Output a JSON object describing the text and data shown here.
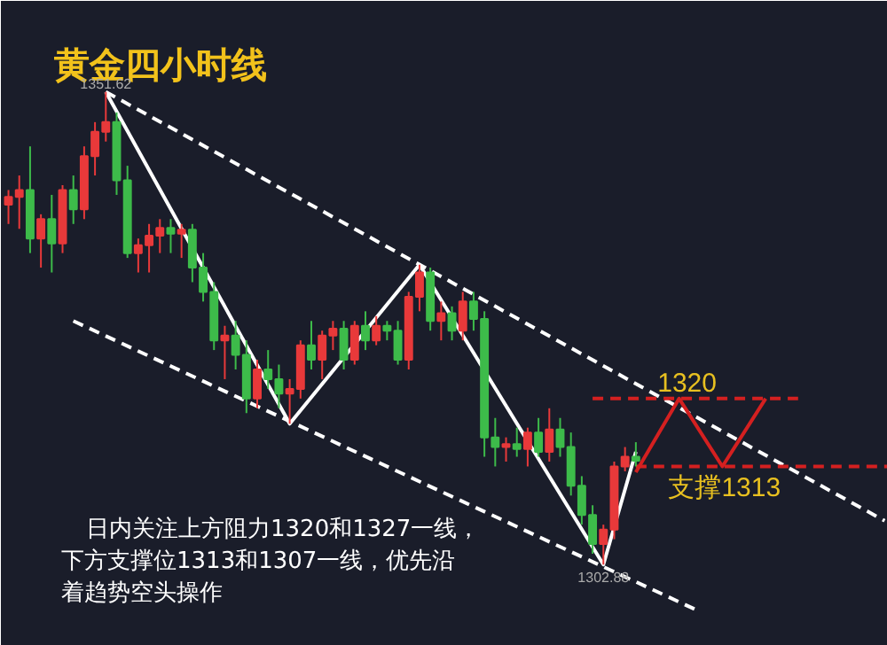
{
  "chart_data": {
    "type": "candlestick",
    "title": "黄金四小时线",
    "categories": [
      null,
      null,
      null,
      null,
      null,
      null,
      null,
      null,
      null,
      null,
      null,
      null,
      null,
      null,
      null,
      null,
      null,
      null,
      null,
      null,
      null,
      null,
      null,
      null,
      null,
      null,
      null,
      null,
      null,
      null,
      null,
      null,
      null,
      null,
      null,
      null,
      null,
      null,
      null,
      null,
      null,
      null,
      null,
      null,
      null,
      null,
      null,
      null,
      null,
      null,
      null,
      null,
      null,
      null,
      null,
      null,
      null,
      null,
      null,
      null,
      null,
      null,
      null,
      null,
      null,
      null,
      null,
      null,
      null,
      null,
      null,
      null,
      null,
      null,
      null,
      null,
      null,
      null,
      null,
      null,
      null,
      null
    ],
    "ohlc": [
      [
        1340.0,
        1341.5,
        1338.0,
        1340.8
      ],
      [
        1340.8,
        1343.0,
        1337.5,
        1341.5
      ],
      [
        1341.5,
        1346.0,
        1335.0,
        1336.5
      ],
      [
        1336.5,
        1339.0,
        1333.5,
        1338.5
      ],
      [
        1338.5,
        1341.0,
        1333.0,
        1336.0
      ],
      [
        1336.0,
        1342.0,
        1335.0,
        1341.5
      ],
      [
        1341.5,
        1343.0,
        1338.0,
        1339.5
      ],
      [
        1339.5,
        1346.0,
        1338.5,
        1345.0
      ],
      [
        1345.0,
        1348.5,
        1343.0,
        1347.5
      ],
      [
        1347.5,
        1351.62,
        1346.5,
        1348.5
      ],
      [
        1348.5,
        1349.5,
        1341.0,
        1342.5
      ],
      [
        1342.5,
        1344.0,
        1334.5,
        1335.0
      ],
      [
        1335.0,
        1336.5,
        1333.0,
        1335.8
      ],
      [
        1335.8,
        1338.0,
        1333.0,
        1336.8
      ],
      [
        1336.8,
        1338.5,
        1335.0,
        1337.6
      ],
      [
        1337.6,
        1338.5,
        1335.0,
        1337.0
      ],
      [
        1337.0,
        1338.0,
        1334.5,
        1337.4
      ],
      [
        1337.4,
        1338.0,
        1332.0,
        1333.5
      ],
      [
        1333.5,
        1335.0,
        1330.0,
        1331.0
      ],
      [
        1331.0,
        1332.0,
        1325.0,
        1326.0
      ],
      [
        1326.0,
        1327.5,
        1322.0,
        1326.5
      ],
      [
        1326.5,
        1328.0,
        1323.0,
        1324.5
      ],
      [
        1324.5,
        1326.0,
        1318.5,
        1320.0
      ],
      [
        1320.0,
        1324.0,
        1319.0,
        1323.0
      ],
      [
        1323.0,
        1325.0,
        1321.0,
        1322.0
      ],
      [
        1322.0,
        1323.5,
        1319.0,
        1320.5
      ],
      [
        1320.5,
        1322.0,
        1317.4,
        1321.0
      ],
      [
        1321.0,
        1326.0,
        1320.0,
        1325.5
      ],
      [
        1325.5,
        1328.0,
        1323.0,
        1324.0
      ],
      [
        1324.0,
        1327.0,
        1322.0,
        1326.5
      ],
      [
        1326.5,
        1328.0,
        1325.0,
        1327.2
      ],
      [
        1327.2,
        1328.0,
        1323.0,
        1324.0
      ],
      [
        1324.0,
        1328.0,
        1323.5,
        1327.5
      ],
      [
        1327.5,
        1329.0,
        1325.0,
        1326.0
      ],
      [
        1326.0,
        1328.5,
        1325.5,
        1327.5
      ],
      [
        1327.5,
        1328.0,
        1326.0,
        1327.0
      ],
      [
        1327.0,
        1328.0,
        1323.5,
        1324.0
      ],
      [
        1324.0,
        1331.0,
        1323.0,
        1330.5
      ],
      [
        1330.5,
        1333.8,
        1329.0,
        1333.0
      ],
      [
        1333.0,
        1333.5,
        1327.0,
        1328.0
      ],
      [
        1328.0,
        1330.0,
        1326.0,
        1328.8
      ],
      [
        1328.8,
        1329.5,
        1326.0,
        1327.0
      ],
      [
        1327.0,
        1331.0,
        1326.0,
        1330.0
      ],
      [
        1330.0,
        1331.0,
        1327.0,
        1328.2
      ],
      [
        1328.2,
        1329.0,
        1314.0,
        1316.0
      ],
      [
        1316.0,
        1318.0,
        1313.0,
        1315.0
      ],
      [
        1315.0,
        1316.0,
        1313.5,
        1315.3
      ],
      [
        1315.3,
        1317.0,
        1314.0,
        1314.8
      ],
      [
        1314.8,
        1317.0,
        1313.0,
        1316.5
      ],
      [
        1316.5,
        1318.0,
        1314.0,
        1314.5
      ],
      [
        1314.5,
        1319.0,
        1313.5,
        1316.8
      ],
      [
        1316.8,
        1318.0,
        1314.0,
        1315.0
      ],
      [
        1315.0,
        1316.5,
        1310.0,
        1311.0
      ],
      [
        1311.0,
        1312.0,
        1307.0,
        1308.0
      ],
      [
        1308.0,
        1309.0,
        1304.0,
        1305.0
      ],
      [
        1305.0,
        1307.0,
        1302.88,
        1306.5
      ],
      [
        1306.5,
        1313.5,
        1305.5,
        1313.0
      ],
      [
        1313.0,
        1315.0,
        1312.5,
        1314.0
      ],
      [
        1314.0,
        1315.5,
        1313.0,
        1313.6
      ],
      null,
      null,
      null,
      null,
      null,
      null,
      null,
      null,
      null,
      null,
      null,
      null,
      null,
      null,
      null,
      null,
      null,
      null,
      null,
      null,
      null,
      null,
      null
    ],
    "colors": [
      "#e8393a",
      "#e8393a",
      "#3dbb4a",
      "#e8393a",
      "#3dbb4a",
      "#e8393a",
      "#3dbb4a",
      "#e8393a",
      "#e8393a",
      "#e8393a",
      "#3dbb4a",
      "#3dbb4a",
      "#e8393a",
      "#e8393a",
      "#e8393a",
      "#3dbb4a",
      "#e8393a",
      "#3dbb4a",
      "#3dbb4a",
      "#3dbb4a",
      "#e8393a",
      "#3dbb4a",
      "#3dbb4a",
      "#e8393a",
      "#3dbb4a",
      "#3dbb4a",
      "#e8393a",
      "#e8393a",
      "#3dbb4a",
      "#e8393a",
      "#e8393a",
      "#3dbb4a",
      "#e8393a",
      "#3dbb4a",
      "#e8393a",
      "#3dbb4a",
      "#3dbb4a",
      "#e8393a",
      "#e8393a",
      "#3dbb4a",
      "#e8393a",
      "#3dbb4a",
      "#e8393a",
      "#3dbb4a",
      "#3dbb4a",
      "#3dbb4a",
      "#e8393a",
      "#3dbb4a",
      "#e8393a",
      "#3dbb4a",
      "#e8393a",
      "#3dbb4a",
      "#3dbb4a",
      "#3dbb4a",
      "#3dbb4a",
      "#e8393a",
      "#e8393a",
      "#e8393a",
      "#3dbb4a",
      null,
      null,
      null,
      null,
      null,
      null,
      null,
      null,
      null,
      null,
      null,
      null,
      null,
      null,
      null,
      null,
      null,
      null,
      null,
      null,
      null,
      null,
      null
    ],
    "series": [
      {
        "type": "line",
        "color": "#ffffff",
        "line_style": "solid",
        "values": [
          null,
          null,
          null,
          null,
          null,
          null,
          null,
          null,
          null,
          1351.62,
          null,
          null,
          null,
          null,
          null,
          null,
          null,
          null,
          null,
          null,
          null,
          null,
          null,
          null,
          null,
          null,
          1317.4,
          null,
          null,
          null,
          null,
          null,
          null,
          null,
          null,
          null,
          null,
          null,
          1333.8,
          null,
          null,
          null,
          null,
          null,
          null,
          null,
          null,
          null,
          null,
          null,
          null,
          null,
          null,
          null,
          null,
          1302.88,
          null,
          null,
          1314.5,
          null,
          null,
          null,
          null,
          null,
          null,
          null,
          null,
          null,
          null,
          null,
          null,
          null,
          null,
          null,
          null,
          null,
          null,
          null,
          null,
          null,
          null,
          null
        ]
      },
      {
        "type": "line",
        "color": "#ffffff",
        "line_style": "dashed",
        "values": [
          null,
          null,
          null,
          null,
          null,
          null,
          null,
          null,
          null,
          1351.62,
          null,
          null,
          null,
          null,
          null,
          null,
          null,
          null,
          null,
          null,
          null,
          null,
          null,
          null,
          null,
          null,
          null,
          null,
          null,
          null,
          null,
          null,
          null,
          null,
          null,
          null,
          null,
          null,
          null,
          null,
          null,
          null,
          null,
          null,
          null,
          null,
          null,
          null,
          null,
          null,
          null,
          null,
          null,
          null,
          null,
          null,
          null,
          null,
          null,
          null,
          null,
          null,
          null,
          null,
          null,
          null,
          null,
          null,
          null,
          null,
          null,
          null,
          null,
          null,
          null,
          null,
          null,
          null,
          null,
          null,
          null,
          1307.4
        ]
      },
      {
        "type": "line",
        "color": "#ffffff",
        "line_style": "dashed",
        "values": [
          null,
          null,
          null,
          null,
          null,
          null,
          1328.0,
          null,
          null,
          null,
          null,
          null,
          null,
          null,
          null,
          null,
          null,
          null,
          null,
          null,
          null,
          null,
          null,
          null,
          null,
          null,
          null,
          null,
          null,
          null,
          null,
          null,
          null,
          null,
          null,
          null,
          null,
          null,
          null,
          null,
          null,
          null,
          null,
          null,
          null,
          null,
          null,
          null,
          null,
          null,
          null,
          null,
          null,
          null,
          null,
          null,
          null,
          null,
          null,
          null,
          null,
          null,
          null,
          null,
          1298.0,
          null,
          null,
          null,
          null,
          null,
          null,
          null,
          null,
          null,
          null,
          null,
          null,
          null,
          null,
          null,
          null,
          null
        ]
      },
      {
        "type": "line",
        "color": "#d42020",
        "line_style": "solid",
        "values": [
          null,
          null,
          null,
          null,
          null,
          null,
          null,
          null,
          null,
          null,
          null,
          null,
          null,
          null,
          null,
          null,
          null,
          null,
          null,
          null,
          null,
          null,
          null,
          null,
          null,
          null,
          null,
          null,
          null,
          null,
          null,
          null,
          null,
          null,
          null,
          null,
          null,
          null,
          null,
          null,
          null,
          null,
          null,
          null,
          null,
          null,
          null,
          null,
          null,
          null,
          null,
          null,
          null,
          null,
          null,
          null,
          null,
          null,
          1312.4,
          null,
          null,
          null,
          1320,
          null,
          null,
          null,
          1313,
          null,
          null,
          null,
          1320,
          null,
          null,
          null,
          null,
          null,
          null,
          null,
          null,
          null,
          null,
          null
        ]
      }
    ],
    "ref_lines": [
      {
        "axis": "y",
        "value": 1320,
        "label": "1320",
        "color": "#d42020",
        "line_style": "dashed"
      },
      {
        "axis": "y",
        "value": 1313,
        "label": "支撑1313",
        "color": "#d42020",
        "line_style": "dashed"
      }
    ],
    "ylim": [
      1294.5,
      1361
    ],
    "tick_labels": false,
    "annotations": [
      {
        "text": "1351.62",
        "y": 1351.62
      },
      {
        "text": "1302.88",
        "y": 1302.88
      },
      "日内关注上方阻力1320和1327一线，下方支撑位1313和1307一线，优先沿着趋势空头操作"
    ]
  }
}
